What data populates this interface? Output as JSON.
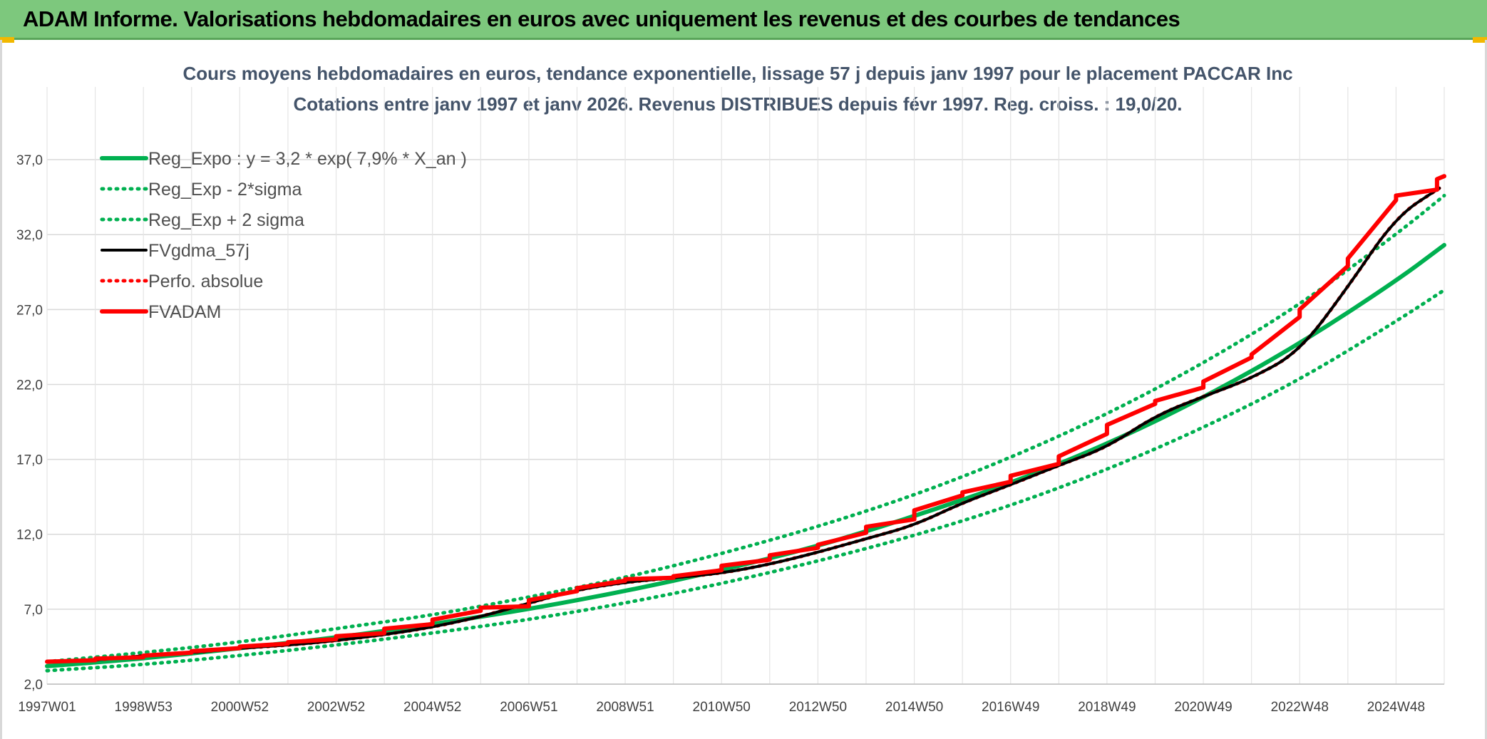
{
  "header": {
    "title": "ADAM Informe. Valorisations hebdomadaires en euros avec uniquement les revenus et des courbes de tendances"
  },
  "colors": {
    "header_bg": "#7dc87d",
    "green": "#00b050",
    "black": "#000000",
    "red": "#ff0000",
    "gold": "#f2b800"
  },
  "chart_data": {
    "type": "line",
    "title": "Cours moyens hebdomadaires en euros, tendance exponentielle, lissage 57 j depuis janv 1997 pour le placement PACCAR Inc",
    "subtitle": "Cotations entre janv 1997 et janv 2026. Revenus DISTRIBUES depuis févr 1997. Reg. croiss. : 19,0/20.",
    "xlabel": "",
    "ylabel": "",
    "ylim": [
      2.0,
      39.0
    ],
    "xlim": [
      1997.0,
      2026.0
    ],
    "yticks": [
      2.0,
      7.0,
      12.0,
      17.0,
      22.0,
      27.0,
      32.0,
      37.0
    ],
    "ytick_labels": [
      "2,0",
      "7,0",
      "12,0",
      "17,0",
      "22,0",
      "27,0",
      "32,0",
      "37,0"
    ],
    "xtick_labels": [
      "1997W01",
      "1998W53",
      "2000W52",
      "2002W52",
      "2004W52",
      "2006W51",
      "2008W51",
      "2010W50",
      "2012W50",
      "2014W50",
      "2016W49",
      "2018W49",
      "2020W49",
      "2022W48",
      "2024W48"
    ],
    "xtick_values": [
      1997.0,
      1999.0,
      2001.0,
      2003.0,
      2005.0,
      2007.0,
      2009.0,
      2011.0,
      2013.0,
      2015.0,
      2017.0,
      2019.0,
      2021.0,
      2023.0,
      2025.0
    ],
    "grid": true,
    "legend": {
      "placement": "top-left",
      "entries": [
        {
          "name": "Reg_Expo : y = 3,2 * exp( 7,9% *  X_an )",
          "color": "#00b050",
          "style": "solid"
        },
        {
          "name": "Reg_Exp - 2*sigma",
          "color": "#00b050",
          "style": "dotted"
        },
        {
          "name": "Reg_Exp + 2 sigma",
          "color": "#00b050",
          "style": "dotted"
        },
        {
          "name": "FVgdma_57j",
          "color": "#000000",
          "style": "solid"
        },
        {
          "name": "Perfo. absolue",
          "color": "#ff0000",
          "style": "dotted"
        },
        {
          "name": "FVADAM",
          "color": "#ff0000",
          "style": "solid"
        }
      ]
    },
    "series": [
      {
        "name": "Reg_Expo : y = 3,2 * exp( 7,9% *  X_an )",
        "x": [
          1997.0,
          1999.0,
          2001.0,
          2003.0,
          2005.0,
          2007.0,
          2009.0,
          2011.0,
          2013.0,
          2015.0,
          2017.0,
          2019.0,
          2021.0,
          2023.0,
          2025.0,
          2026.0
        ],
        "y": [
          3.2,
          3.7,
          4.4,
          5.1,
          6.0,
          7.0,
          8.2,
          9.6,
          11.2,
          13.2,
          15.4,
          18.0,
          21.1,
          24.7,
          28.9,
          31.3
        ]
      },
      {
        "name": "Reg_Exp - 2*sigma",
        "x": [
          1997.0,
          1999.0,
          2001.0,
          2003.0,
          2005.0,
          2007.0,
          2009.0,
          2011.0,
          2013.0,
          2015.0,
          2017.0,
          2019.0,
          2021.0,
          2023.0,
          2025.0,
          2026.0
        ],
        "y": [
          2.9,
          3.3,
          3.9,
          4.6,
          5.4,
          6.3,
          7.4,
          8.7,
          10.2,
          11.9,
          13.9,
          16.3,
          19.1,
          22.3,
          26.2,
          28.3
        ]
      },
      {
        "name": "Reg_Exp + 2 sigma",
        "x": [
          1997.0,
          1999.0,
          2001.0,
          2003.0,
          2005.0,
          2007.0,
          2009.0,
          2011.0,
          2013.0,
          2015.0,
          2017.0,
          2019.0,
          2021.0,
          2023.0,
          2025.0,
          2026.0
        ],
        "y": [
          3.5,
          4.1,
          4.8,
          5.7,
          6.6,
          7.8,
          9.1,
          10.7,
          12.5,
          14.6,
          17.1,
          20.0,
          23.4,
          27.3,
          32.0,
          34.6
        ]
      },
      {
        "name": "FVgdma_57j",
        "x": [
          1997.0,
          1998.0,
          1999.0,
          2000.0,
          2001.0,
          2002.0,
          2003.0,
          2004.0,
          2005.0,
          2006.0,
          2007.0,
          2008.0,
          2009.0,
          2010.0,
          2011.0,
          2012.0,
          2013.0,
          2014.0,
          2015.0,
          2016.0,
          2017.0,
          2018.0,
          2019.0,
          2020.0,
          2021.0,
          2022.0,
          2023.0,
          2024.0,
          2025.0,
          2025.9
        ],
        "y": [
          3.5,
          3.6,
          3.9,
          4.1,
          4.4,
          4.6,
          4.9,
          5.3,
          5.8,
          6.5,
          7.4,
          8.3,
          8.8,
          9.1,
          9.4,
          10.0,
          10.8,
          11.7,
          12.6,
          14.1,
          15.3,
          16.6,
          17.8,
          19.9,
          21.2,
          22.4,
          24.2,
          28.5,
          33.2,
          35.1
        ]
      },
      {
        "name": "Perfo. absolue",
        "x": [
          1997.0,
          1998.0,
          1999.0,
          2000.0,
          2001.0,
          2002.0,
          2003.0,
          2004.0,
          2005.0,
          2006.0,
          2007.0,
          2008.0,
          2009.0,
          2010.0,
          2011.0,
          2012.0,
          2013.0,
          2014.0,
          2015.0,
          2016.0,
          2017.0,
          2018.0,
          2019.0,
          2020.0,
          2021.0,
          2022.0,
          2023.0,
          2024.0,
          2025.0,
          2025.9
        ],
        "y": [
          3.5,
          3.6,
          3.9,
          4.1,
          4.4,
          4.6,
          4.9,
          5.3,
          5.8,
          6.5,
          7.4,
          8.3,
          8.8,
          9.1,
          9.4,
          10.0,
          10.8,
          11.7,
          12.6,
          14.1,
          15.3,
          16.6,
          17.8,
          19.9,
          21.2,
          22.4,
          24.2,
          28.5,
          33.2,
          35.1
        ]
      },
      {
        "name": "FVADAM",
        "x": [
          1997.0,
          1998.0,
          1998.0,
          1999.0,
          1999.0,
          2000.0,
          2000.0,
          2001.0,
          2001.0,
          2002.0,
          2002.0,
          2003.0,
          2003.0,
          2004.0,
          2004.0,
          2005.0,
          2005.0,
          2006.0,
          2006.0,
          2007.0,
          2007.0,
          2008.0,
          2008.0,
          2009.0,
          2009.0,
          2010.0,
          2010.0,
          2011.0,
          2011.0,
          2012.0,
          2012.0,
          2013.0,
          2013.0,
          2014.0,
          2014.0,
          2015.0,
          2015.0,
          2016.0,
          2016.0,
          2017.0,
          2017.0,
          2018.0,
          2018.0,
          2019.0,
          2019.0,
          2020.0,
          2020.0,
          2021.0,
          2021.0,
          2022.0,
          2022.0,
          2023.0,
          2023.0,
          2024.0,
          2024.0,
          2025.0,
          2025.0,
          2025.85,
          2025.85,
          2026.0
        ],
        "y": [
          3.5,
          3.6,
          3.7,
          3.8,
          3.9,
          4.1,
          4.2,
          4.4,
          4.5,
          4.7,
          4.8,
          5.0,
          5.2,
          5.4,
          5.7,
          6.0,
          6.3,
          6.9,
          7.1,
          7.2,
          7.6,
          8.2,
          8.4,
          8.9,
          9.0,
          9.1,
          9.2,
          9.6,
          9.9,
          10.3,
          10.6,
          11.1,
          11.3,
          12.1,
          12.5,
          13.0,
          13.6,
          14.6,
          14.8,
          15.5,
          15.9,
          16.7,
          17.2,
          18.7,
          19.3,
          20.7,
          20.9,
          21.8,
          22.2,
          23.8,
          24.0,
          26.5,
          27.0,
          29.9,
          30.4,
          34.3,
          34.6,
          35.0,
          35.7,
          35.9
        ]
      }
    ]
  }
}
